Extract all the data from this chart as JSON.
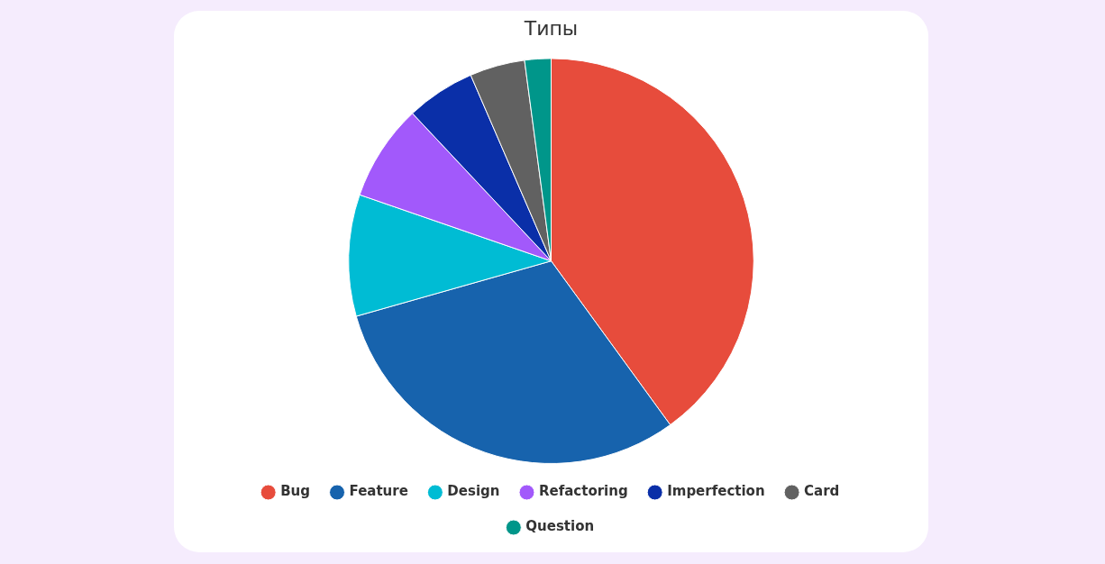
{
  "chart_data": {
    "type": "pie",
    "title": "Типы",
    "categories": [
      "Bug",
      "Feature",
      "Design",
      "Refactoring",
      "Imperfection",
      "Card",
      "Question"
    ],
    "values": [
      40.0,
      30.6,
      9.7,
      7.7,
      5.5,
      4.4,
      2.1
    ],
    "colors": [
      "#e74c3c",
      "#1763ad",
      "#00bcd4",
      "#a259fb",
      "#0a2fa8",
      "#616161",
      "#00968a"
    ],
    "legend": "bottom"
  }
}
